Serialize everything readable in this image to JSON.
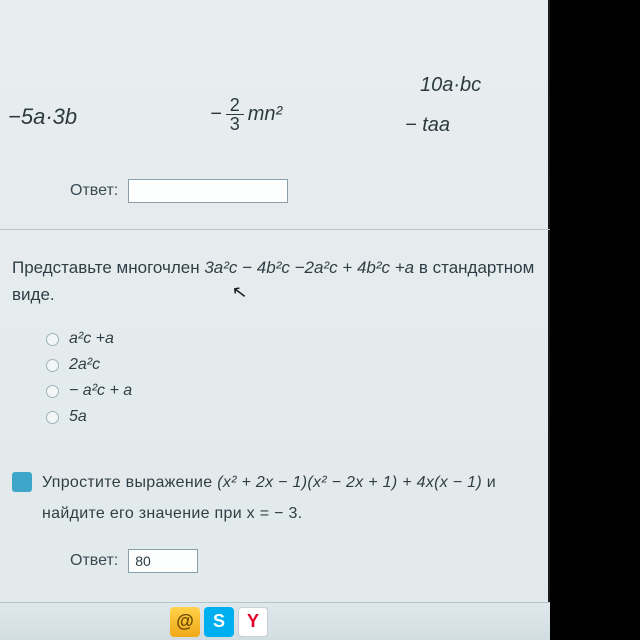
{
  "top_row": {
    "left_expr": "−5a·3b",
    "mid_prefix": "−",
    "frac_num": "2",
    "frac_den": "3",
    "mid_suffix": "mn²",
    "right_top": "10a·bc",
    "right_bot": "− taa"
  },
  "answer1": {
    "label": "Ответ:",
    "value": ""
  },
  "question1": {
    "prefix": "Представьте многочлен ",
    "poly": "3a²c − 4b²c −2a²c + 4b²c +a",
    "suffix": "  в стандартном",
    "line2": "виде."
  },
  "options": [
    "a²c  +a",
    "2a²c",
    "− a²c + a",
    "5a"
  ],
  "question2": {
    "line1_a": "Упростите  выражение ",
    "line1_b": "(x²  + 2x − 1)(x²  − 2x + 1) + 4x(x − 1)",
    "line1_c": " и",
    "line2": "найдите его значение при   x = − 3."
  },
  "answer2": {
    "label": "Ответ:",
    "value": "80"
  },
  "taskbar": {
    "mail": "@",
    "skype": "S",
    "yandex": "Y"
  },
  "colors": {
    "bg": "#e6edef",
    "text": "#2f3e46",
    "border": "#8aa0ac",
    "badge": "#3da6c9"
  }
}
